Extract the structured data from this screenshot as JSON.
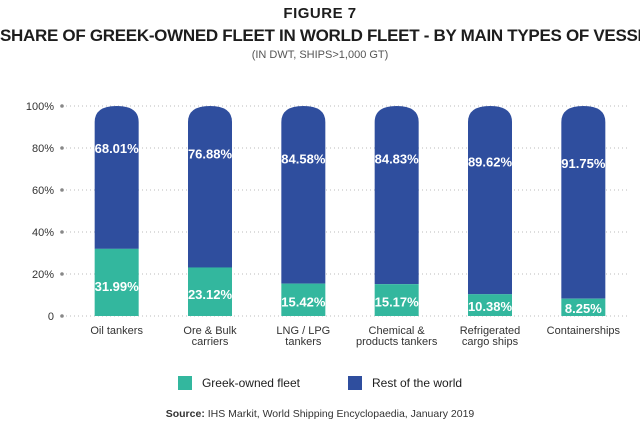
{
  "header": {
    "figure": "FIGURE 7",
    "title": "SHARE OF GREEK-OWNED FLEET IN WORLD FLEET - BY MAIN TYPES OF VESSEL",
    "subtitle": "(IN DWT, SHIPS>1,000 GT)"
  },
  "chart_data": {
    "type": "bar",
    "stacked": true,
    "categories": [
      [
        "Oil tankers"
      ],
      [
        "Ore & Bulk",
        "carriers"
      ],
      [
        "LNG / LPG",
        "tankers"
      ],
      [
        "Chemical &",
        "products tankers"
      ],
      [
        "Refrigerated",
        "cargo ships"
      ],
      [
        "Containerships"
      ]
    ],
    "series": [
      {
        "name": "Greek-owned fleet",
        "values": [
          31.99,
          23.12,
          15.42,
          15.17,
          10.38,
          8.25
        ],
        "labels": [
          "31.99%",
          "23.12%",
          "15.42%",
          "15.17%",
          "10.38%",
          "8.25%"
        ]
      },
      {
        "name": "Rest of the world",
        "values": [
          68.01,
          76.88,
          84.58,
          84.83,
          89.62,
          91.75
        ],
        "labels": [
          "68.01%",
          "76.88%",
          "84.58%",
          "84.83%",
          "89.62%",
          "91.75%"
        ]
      }
    ],
    "yticks": [
      "0",
      "20%",
      "40%",
      "60%",
      "80%",
      "100%"
    ],
    "ylim": [
      0,
      100
    ],
    "grid": true,
    "legend_position": "bottom"
  },
  "colors": {
    "greek": "#33b79e",
    "rest": "#2f4e9e",
    "grid": "#bbbbbb"
  },
  "source": {
    "label": "Source:",
    "text": " IHS Markit, World Shipping Encyclopaedia, January 2019"
  }
}
